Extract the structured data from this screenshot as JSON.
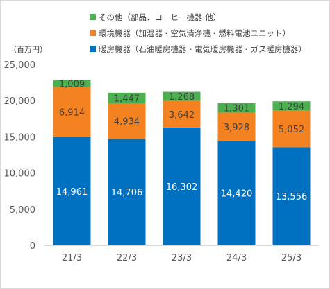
{
  "chart_data": {
    "type": "bar",
    "stacked": true,
    "unit_label": "（百万円）",
    "categories": [
      "21/3",
      "22/3",
      "23/3",
      "24/3",
      "25/3"
    ],
    "series": [
      {
        "name": "暖房機器（石油暖房機器・電気暖房機器・ガス暖房機器）",
        "color": "#0070C0",
        "label_color": "#FFFFFF",
        "values": [
          14961,
          14706,
          16302,
          14420,
          13556
        ]
      },
      {
        "name": "環境機器（加湿器・空気清浄機・燃料電池ユニット）",
        "color": "#F58220",
        "label_color": "#404040",
        "values": [
          6914,
          4934,
          3642,
          3928,
          5052
        ]
      },
      {
        "name": "その他（部品、コーヒー機器 他）",
        "color": "#4CAF50",
        "label_color": "#404040",
        "values": [
          1009,
          1447,
          1268,
          1301,
          1294
        ]
      }
    ],
    "legend_order": [
      2,
      1,
      0
    ],
    "legend_position": "top",
    "ylim": [
      0,
      25000
    ],
    "yticks": [
      "0",
      "5,000",
      "10,000",
      "15,000",
      "20,000",
      "25,000"
    ],
    "ytick_values": [
      0,
      5000,
      10000,
      15000,
      20000,
      25000
    ],
    "grid": false
  }
}
